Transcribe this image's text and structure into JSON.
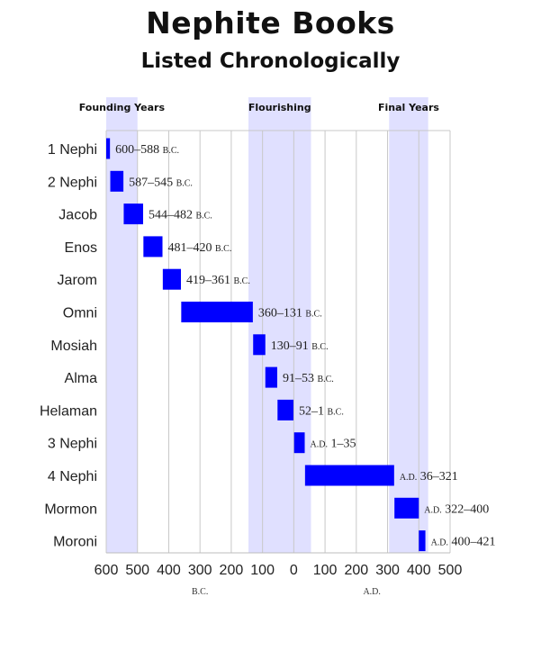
{
  "title": "Nephite Books",
  "subtitle": "Listed Chronologically",
  "colors": {
    "bar": "#0000ff",
    "era_band": "#e0e0ff",
    "grid": "#c8c8c8"
  },
  "chart_data": {
    "type": "bar",
    "orientation": "horizontal",
    "grid": true,
    "x_axis": {
      "range": [
        -600,
        500
      ],
      "ticks": [
        -600,
        -500,
        -400,
        -300,
        -200,
        -100,
        0,
        100,
        200,
        300,
        400,
        500
      ],
      "tick_labels": [
        "600",
        "500",
        "400",
        "300",
        "200",
        "100",
        "0",
        "100",
        "200",
        "300",
        "400",
        "500"
      ],
      "captions": [
        {
          "text": "B.C.",
          "at": -300
        },
        {
          "text": "A.D.",
          "at": 250
        }
      ]
    },
    "eras": [
      {
        "label": "Founding Years",
        "start": -600,
        "end": -500
      },
      {
        "label": "Flourishing",
        "start": -145,
        "end": 55
      },
      {
        "label": "Final Years",
        "start": 305,
        "end": 430
      }
    ],
    "bars": [
      {
        "book": "1 Nephi",
        "start": -600,
        "end": -588,
        "label": "600–588 B.C."
      },
      {
        "book": "2 Nephi",
        "start": -587,
        "end": -545,
        "label": "587–545 B.C."
      },
      {
        "book": "Jacob",
        "start": -544,
        "end": -482,
        "label": "544–482 B.C."
      },
      {
        "book": "Enos",
        "start": -481,
        "end": -420,
        "label": "481–420 B.C."
      },
      {
        "book": "Jarom",
        "start": -419,
        "end": -361,
        "label": "419–361 B.C."
      },
      {
        "book": "Omni",
        "start": -360,
        "end": -131,
        "label": "360–131 B.C."
      },
      {
        "book": "Mosiah",
        "start": -130,
        "end": -91,
        "label": "130–91 B.C."
      },
      {
        "book": "Alma",
        "start": -91,
        "end": -53,
        "label": "91–53 B.C."
      },
      {
        "book": "Helaman",
        "start": -52,
        "end": -1,
        "label": "52–1 B.C."
      },
      {
        "book": "3 Nephi",
        "start": 1,
        "end": 35,
        "label": "A.D. 1–35"
      },
      {
        "book": "4 Nephi",
        "start": 36,
        "end": 321,
        "label": "A.D. 36–321"
      },
      {
        "book": "Mormon",
        "start": 322,
        "end": 400,
        "label": "A.D. 322–400"
      },
      {
        "book": "Moroni",
        "start": 400,
        "end": 421,
        "label": "A.D. 400–421"
      }
    ]
  }
}
